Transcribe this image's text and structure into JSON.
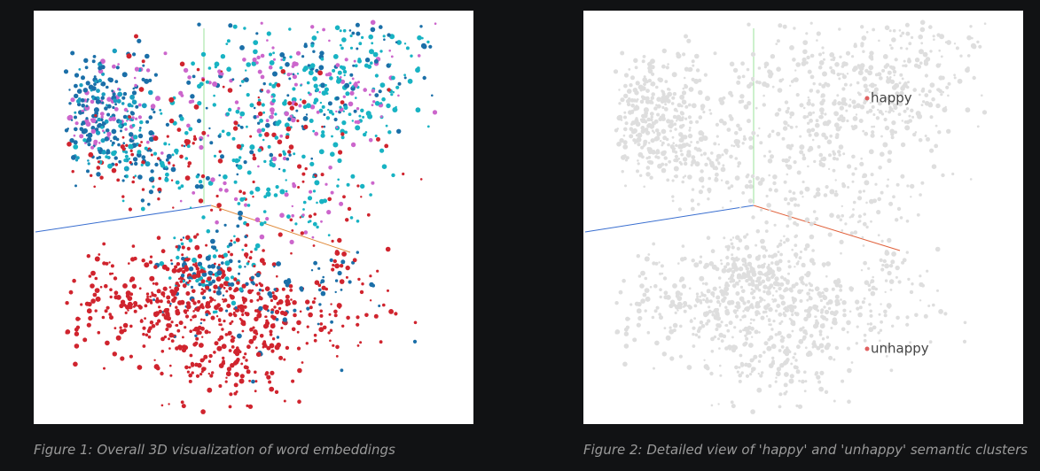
{
  "figures": [
    {
      "caption": "Figure 1: Overall 3D visualization of word embeddings"
    },
    {
      "caption": "Figure 2: Detailed view of 'happy' and 'unhappy' semantic clusters",
      "labels": [
        "happy",
        "unhappy"
      ]
    }
  ]
}
